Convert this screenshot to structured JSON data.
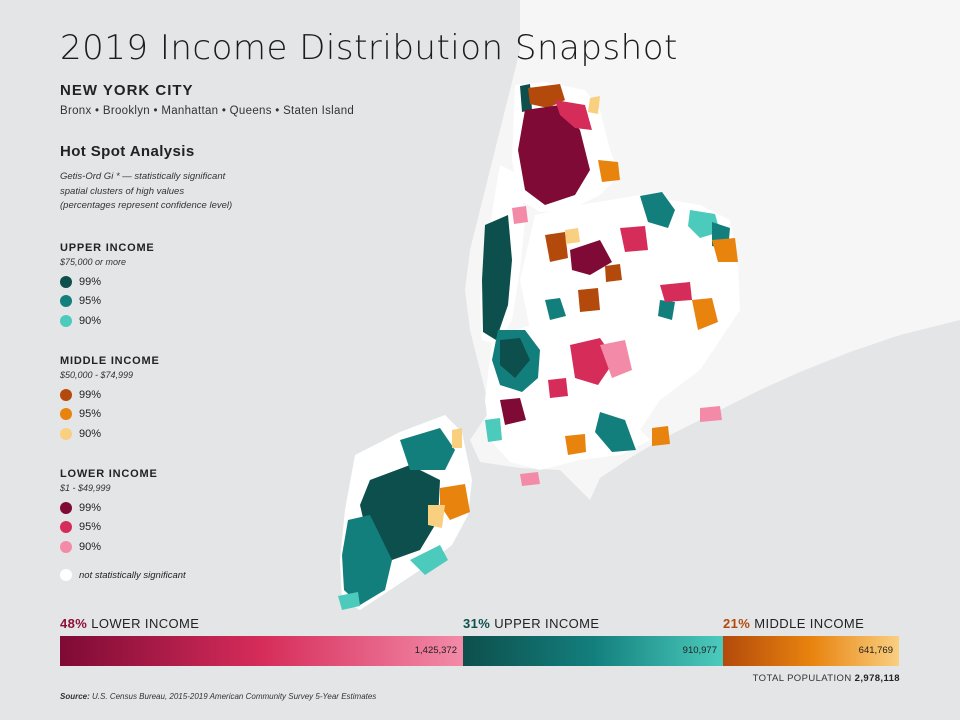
{
  "title": "2019 Income Distribution Snapshot",
  "city": "NEW YORK CITY",
  "boroughs": "Bronx • Brooklyn • Manhattan • Queens • Staten Island",
  "analysis": {
    "title": "Hot Spot Analysis",
    "description_lines": [
      "Getis-Ord Gi * — statistically significant",
      "spatial clusters of high values",
      "(percentages represent confidence level)"
    ]
  },
  "legend": [
    {
      "title": "UPPER INCOME",
      "range": "$75,000 or more",
      "items": [
        {
          "label": "99%",
          "color": "#0d4f4c"
        },
        {
          "label": "95%",
          "color": "#137f7d"
        },
        {
          "label": "90%",
          "color": "#4ccbbd"
        }
      ]
    },
    {
      "title": "MIDDLE INCOME",
      "range": "$50,000 - $74,999",
      "items": [
        {
          "label": "99%",
          "color": "#b34a0c"
        },
        {
          "label": "95%",
          "color": "#e8830e"
        },
        {
          "label": "90%",
          "color": "#f9cf80"
        }
      ]
    },
    {
      "title": "LOWER INCOME",
      "range": "$1 - $49,999",
      "items": [
        {
          "label": "99%",
          "color": "#7e0a35"
        },
        {
          "label": "95%",
          "color": "#d62c5a"
        },
        {
          "label": "90%",
          "color": "#f38ba8"
        }
      ]
    }
  ],
  "not_significant": {
    "label": "not statistically significant",
    "color": "#ffffff"
  },
  "summary": [
    {
      "pct": "48%",
      "label": "LOWER INCOME",
      "value": "1,425,372",
      "share": 48,
      "color_start": "#7e0a35",
      "color_mid": "#d62c5a",
      "color_end": "#f38ba8",
      "pct_color": "#8c1036"
    },
    {
      "pct": "31%",
      "label": "UPPER INCOME",
      "value": "910,977",
      "share": 31,
      "color_start": "#0d4f4c",
      "color_mid": "#137f7d",
      "color_end": "#4ccbbd",
      "pct_color": "#0d4f4c"
    },
    {
      "pct": "21%",
      "label": "MIDDLE INCOME",
      "value": "641,769",
      "share": 21,
      "color_start": "#b34a0c",
      "color_mid": "#e8830e",
      "color_end": "#f9cf80",
      "pct_color": "#b34a0c"
    }
  ],
  "total": {
    "label": "TOTAL POPULATION",
    "value": "2,978,118"
  },
  "source": {
    "label": "Source:",
    "text": "U.S. Census Bureau, 2015-2019 American Community Survey 5-Year Estimates"
  },
  "colors": {
    "background": "#e4e5e7",
    "land": "#ffffff",
    "surrounding_land": "#f6f6f7"
  }
}
